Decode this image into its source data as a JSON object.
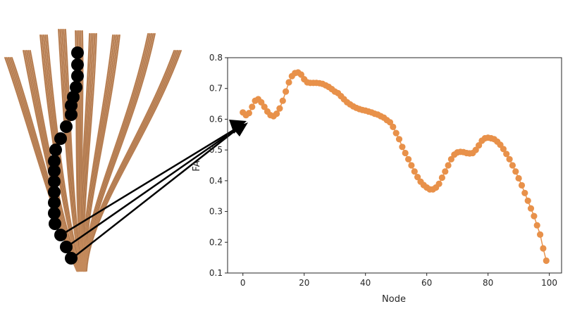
{
  "chart_data": {
    "type": "scatter",
    "title": "",
    "xlabel": "Node",
    "ylabel": "FA",
    "xlim": [
      -5,
      104
    ],
    "ylim": [
      0.1,
      0.8
    ],
    "xticks": [
      0,
      20,
      40,
      60,
      80,
      100
    ],
    "yticks": [
      0.1,
      0.2,
      0.3,
      0.4,
      0.5,
      0.6,
      0.7,
      0.8
    ],
    "grid": false,
    "legend": "none",
    "marker_color": "#e8914a",
    "x": [
      0,
      1,
      2,
      3,
      4,
      5,
      6,
      7,
      8,
      9,
      10,
      11,
      12,
      13,
      14,
      15,
      16,
      17,
      18,
      19,
      20,
      21,
      22,
      23,
      24,
      25,
      26,
      27,
      28,
      29,
      30,
      31,
      32,
      33,
      34,
      35,
      36,
      37,
      38,
      39,
      40,
      41,
      42,
      43,
      44,
      45,
      46,
      47,
      48,
      49,
      50,
      51,
      52,
      53,
      54,
      55,
      56,
      57,
      58,
      59,
      60,
      61,
      62,
      63,
      64,
      65,
      66,
      67,
      68,
      69,
      70,
      71,
      72,
      73,
      74,
      75,
      76,
      77,
      78,
      79,
      80,
      81,
      82,
      83,
      84,
      85,
      86,
      87,
      88,
      89,
      90,
      91,
      92,
      93,
      94,
      95,
      96,
      97,
      98,
      99
    ],
    "y": [
      0.622,
      0.613,
      0.62,
      0.64,
      0.66,
      0.665,
      0.655,
      0.64,
      0.625,
      0.613,
      0.61,
      0.618,
      0.635,
      0.66,
      0.69,
      0.72,
      0.74,
      0.75,
      0.752,
      0.745,
      0.73,
      0.72,
      0.718,
      0.718,
      0.718,
      0.717,
      0.715,
      0.71,
      0.705,
      0.698,
      0.69,
      0.685,
      0.675,
      0.665,
      0.655,
      0.648,
      0.642,
      0.637,
      0.633,
      0.63,
      0.628,
      0.625,
      0.622,
      0.618,
      0.615,
      0.61,
      0.605,
      0.597,
      0.59,
      0.575,
      0.555,
      0.535,
      0.51,
      0.49,
      0.47,
      0.45,
      0.43,
      0.412,
      0.397,
      0.386,
      0.378,
      0.372,
      0.372,
      0.378,
      0.39,
      0.41,
      0.43,
      0.45,
      0.47,
      0.485,
      0.492,
      0.494,
      0.493,
      0.49,
      0.489,
      0.49,
      0.5,
      0.515,
      0.53,
      0.538,
      0.54,
      0.538,
      0.535,
      0.527,
      0.517,
      0.503,
      0.487,
      0.47,
      0.45,
      0.43,
      0.408,
      0.385,
      0.36,
      0.335,
      0.31,
      0.285,
      0.255,
      0.225,
      0.18,
      0.14
    ]
  },
  "illustration": {
    "fiber_color": "#c48a5c",
    "node_color": "#000000",
    "arrow_color": "#000000"
  }
}
